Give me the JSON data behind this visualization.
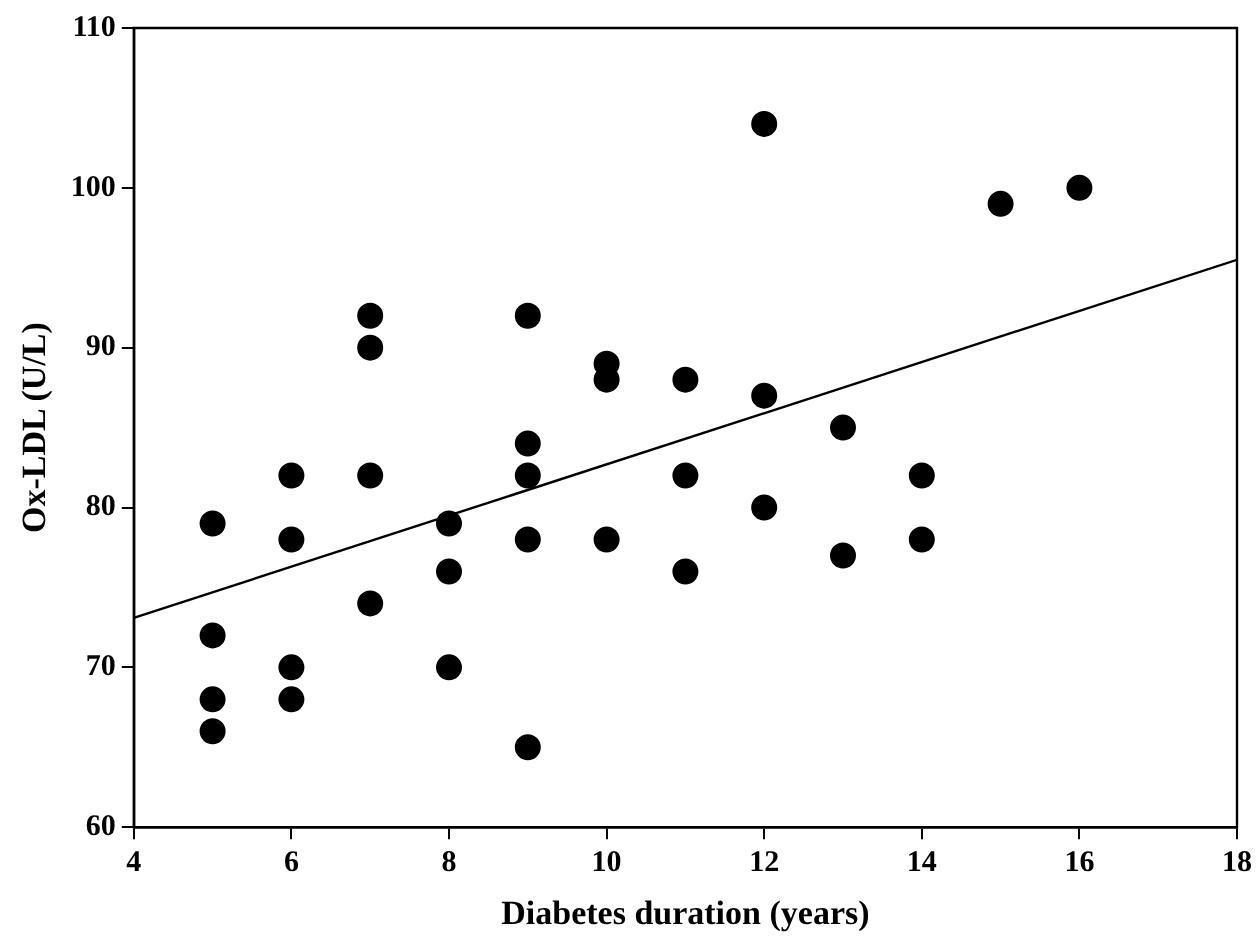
{
  "chart_data": {
    "type": "scatter",
    "xlabel": "Diabetes duration (years)",
    "ylabel": "Ox-LDL (U/L)",
    "xlim": [
      4,
      18
    ],
    "xticks": [
      4,
      6,
      8,
      10,
      12,
      14,
      16,
      18
    ],
    "ylim": [
      60,
      110
    ],
    "yticks": [
      60,
      70,
      80,
      90,
      100,
      110
    ],
    "grid": false,
    "legend": false,
    "marker": "circle",
    "series": [
      {
        "type": "scatter",
        "color": "#000000",
        "x": [
          5,
          5,
          5,
          5,
          6,
          6,
          6,
          6,
          7,
          7,
          7,
          7,
          8,
          8,
          8,
          9,
          9,
          9,
          9,
          9,
          10,
          10,
          10,
          11,
          11,
          11,
          12,
          12,
          12,
          13,
          13,
          14,
          14,
          15,
          16
        ],
        "values": [
          79,
          72,
          68,
          66,
          82,
          78,
          70,
          68,
          92,
          90,
          82,
          74,
          79,
          76,
          70,
          92,
          84,
          82,
          78,
          65,
          89,
          88,
          78,
          88,
          82,
          76,
          104,
          87,
          80,
          85,
          77,
          82,
          78,
          99,
          100
        ]
      },
      {
        "type": "line",
        "color": "#000000",
        "marker": "none",
        "x": [
          4,
          18
        ],
        "values": [
          73.1,
          95.5
        ]
      }
    ]
  }
}
